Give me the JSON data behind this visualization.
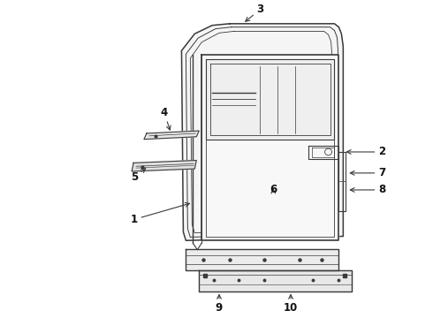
{
  "background_color": "#ffffff",
  "line_color": "#3a3a3a",
  "line_width": 1.0,
  "label_fontsize": 8.5,
  "label_color": "#111111"
}
